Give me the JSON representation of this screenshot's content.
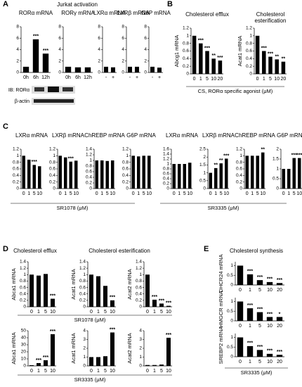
{
  "panel_labels": [
    "A",
    "B",
    "C",
    "D",
    "E"
  ],
  "headings": [
    "Jurkat activation",
    "Cholesterol efflux",
    "Cholesterol esterification",
    "Cholesterol synthesis"
  ],
  "blot_labels": [
    "IB: RORα",
    "β-actin"
  ],
  "xlabels": [
    "CS, RORα specific agonist (μM)",
    "SR1078 (μM)",
    "SR3335 (μM)",
    "SR1078 (μM)",
    "SR3335 (μM)",
    "SR3335 (μM)"
  ],
  "chart_data": [
    {
      "type": "bar",
      "title": "RORα mRNA",
      "categories": [
        "0h",
        "6h",
        "12h"
      ],
      "values": [
        1,
        5.8,
        3.3
      ],
      "annotations": [
        null,
        "***",
        "***"
      ],
      "ylim": [
        0,
        8
      ],
      "yticks": [
        0,
        2,
        4,
        6,
        8
      ],
      "color": "#000000"
    },
    {
      "type": "bar",
      "title": "RORγ mRNA",
      "categories": [
        "0h",
        "6h",
        "12h"
      ],
      "values": [
        1,
        0.9,
        0.9
      ],
      "ylim": [
        0,
        8
      ],
      "yticks": [
        0,
        2,
        4,
        6,
        8
      ],
      "color": "#000000"
    },
    {
      "type": "bar",
      "title": "LXRα mRNA",
      "categories": [
        "-",
        "+"
      ],
      "values": [
        1,
        0.9
      ],
      "ylim": [
        0,
        8
      ],
      "yticks": [
        0,
        2,
        4,
        6,
        8
      ],
      "color": "#000000"
    },
    {
      "type": "bar",
      "title": "LXRβ mRNA",
      "categories": [
        "-",
        "+"
      ],
      "values": [
        1,
        1
      ],
      "ylim": [
        0,
        8
      ],
      "yticks": [
        0,
        2,
        4,
        6,
        8
      ],
      "color": "#000000"
    },
    {
      "type": "bar",
      "title": "G6P mRNA",
      "categories": [
        "-",
        "+"
      ],
      "values": [
        1,
        0.85
      ],
      "ylim": [
        0,
        8
      ],
      "yticks": [
        0,
        2,
        4,
        6,
        8
      ],
      "color": "#000000"
    },
    {
      "type": "bar",
      "title": "Cholesterol efflux",
      "ylabel": "Abcg1 mRNA",
      "categories": [
        "0",
        "1",
        "5",
        "10",
        "20"
      ],
      "values": [
        1,
        0.8,
        0.6,
        0.4,
        0.35
      ],
      "annotations": [
        null,
        "***",
        "***",
        "**",
        "***"
      ],
      "ylim": [
        0,
        1.2
      ],
      "yticks": [
        0,
        0.2,
        0.4,
        0.6,
        0.8,
        1,
        1.2
      ],
      "color": "#000000"
    },
    {
      "type": "bar",
      "title": "Cholesterol esterification",
      "ylabel": "Acat1 mRNA",
      "categories": [
        "0",
        "1",
        "5",
        "10",
        "20"
      ],
      "values": [
        1,
        0.6,
        0.45,
        0.38,
        0.32
      ],
      "annotations": [
        null,
        "***",
        "***",
        "**",
        "**"
      ],
      "ylim": [
        0,
        1.2
      ],
      "yticks": [
        0,
        0.2,
        0.4,
        0.6,
        0.8,
        1,
        1.2
      ],
      "color": "#000000"
    },
    {
      "type": "bar",
      "title": "LXRα mRNA",
      "categories": [
        "0",
        "1",
        "5",
        "10"
      ],
      "values": [
        1,
        0.88,
        0.72,
        0.68
      ],
      "annotations": [
        null,
        null,
        "***",
        null
      ],
      "ylim": [
        0,
        1.2
      ],
      "yticks": [
        0,
        0.2,
        0.4,
        0.6,
        0.8,
        1,
        1.2
      ],
      "color": "#000000"
    },
    {
      "type": "bar",
      "title": "LXRβ mRNA",
      "categories": [
        "0",
        "1",
        "5",
        "10"
      ],
      "values": [
        1,
        0.95,
        0.82,
        0.85
      ],
      "annotations": [
        null,
        null,
        "***",
        null
      ],
      "ylim": [
        0,
        1.2
      ],
      "yticks": [
        0,
        0.2,
        0.4,
        0.6,
        0.8,
        1,
        1.2
      ],
      "color": "#000000"
    },
    {
      "type": "bar",
      "title": "ChREBP mRNA",
      "categories": [
        "0",
        "1",
        "5",
        "10"
      ],
      "values": [
        1,
        1,
        0.98,
        1
      ],
      "ylim": [
        0,
        1.4
      ],
      "yticks": [
        0,
        0.2,
        0.4,
        0.6,
        0.8,
        1,
        1.2,
        1.4
      ],
      "color": "#000000"
    },
    {
      "type": "bar",
      "title": "G6P mRNA",
      "categories": [
        "0",
        "1",
        "5",
        "10"
      ],
      "values": [
        1,
        0.98,
        1,
        1
      ],
      "ylim": [
        0,
        1.2
      ],
      "yticks": [
        0,
        0.2,
        0.4,
        0.6,
        0.8,
        1,
        1.2
      ],
      "color": "#000000"
    },
    {
      "type": "bar",
      "title": "LXRα mRNA",
      "categories": [
        "0",
        "1",
        "5",
        "10"
      ],
      "values": [
        1,
        1,
        1,
        1.05
      ],
      "ylim": [
        0,
        1.6
      ],
      "yticks": [
        0,
        0.2,
        0.4,
        0.6,
        0.8,
        1,
        1.2,
        1.4,
        1.6
      ],
      "color": "#000000"
    },
    {
      "type": "bar",
      "title": "LXRβ mRNA",
      "categories": [
        "0",
        "1",
        "5",
        "10"
      ],
      "values": [
        1,
        1.3,
        1.6,
        1.9
      ],
      "annotations": [
        null,
        "**",
        "**",
        "***"
      ],
      "ylim": [
        0,
        2.5
      ],
      "yticks": [
        0,
        0.5,
        1,
        1.5,
        2,
        2.5
      ],
      "color": "#000000"
    },
    {
      "type": "bar",
      "title": "ChREBP mRNA",
      "categories": [
        "0",
        "1",
        "5",
        "10"
      ],
      "values": [
        1,
        1,
        1,
        1.1
      ],
      "annotations": [
        null,
        null,
        null,
        "**"
      ],
      "ylim": [
        0,
        1.2
      ],
      "yticks": [
        0,
        0.2,
        0.4,
        0.6,
        0.8,
        1,
        1.2
      ],
      "color": "#000000"
    },
    {
      "type": "bar",
      "title": "G6P mRNA",
      "categories": [
        "0",
        "1",
        "5",
        "10"
      ],
      "values": [
        1,
        1,
        1.55,
        1.55
      ],
      "annotations": [
        null,
        null,
        "***",
        "***"
      ],
      "ylim": [
        0,
        2
      ],
      "yticks": [
        0,
        0.5,
        1,
        1.5,
        2
      ],
      "color": "#000000"
    },
    {
      "type": "bar",
      "ylabel": "Abca1 mRNA",
      "categories": [
        "0",
        "1",
        "5",
        "10"
      ],
      "values": [
        1,
        0.97,
        1.02,
        0.25
      ],
      "annotations": [
        null,
        null,
        null,
        "***"
      ],
      "ylim": [
        0,
        1.4
      ],
      "yticks": [
        0,
        0.2,
        0.4,
        0.6,
        0.8,
        1,
        1.2,
        1.4
      ],
      "color": "#000000"
    },
    {
      "type": "bar",
      "ylabel": "Acat1 mRNA",
      "categories": [
        "0",
        "1",
        "5",
        "10"
      ],
      "values": [
        1,
        0.95,
        0.65,
        0.2
      ],
      "annotations": [
        null,
        null,
        null,
        "***"
      ],
      "ylim": [
        0,
        1.4
      ],
      "yticks": [
        0,
        0.2,
        0.4,
        0.6,
        0.8,
        1,
        1.2,
        1.4
      ],
      "color": "#000000"
    },
    {
      "type": "bar",
      "ylabel": "Acat2 mRNA",
      "categories": [
        "0",
        "1",
        "5",
        "10"
      ],
      "values": [
        1,
        0.22,
        0.1,
        0.03
      ],
      "annotations": [
        null,
        "***",
        "***",
        "***"
      ],
      "ylim": [
        0,
        1.4
      ],
      "yticks": [
        0,
        0.2,
        0.4,
        0.6,
        0.8,
        1,
        1.2,
        1.4
      ],
      "color": "#000000"
    },
    {
      "type": "bar",
      "ylabel": "Abca1 mRNA",
      "categories": [
        "0",
        "1",
        "5",
        "10"
      ],
      "values": [
        1,
        4,
        8,
        45
      ],
      "annotations": [
        null,
        "***",
        "***",
        "***"
      ],
      "ylim": [
        0,
        50
      ],
      "yticks": [
        0,
        10,
        20,
        30,
        40,
        50
      ],
      "color": "#000000"
    },
    {
      "type": "bar",
      "ylabel": "Acat1 mRNA",
      "categories": [
        "0",
        "1",
        "5",
        "10"
      ],
      "values": [
        1,
        1,
        1.1,
        3.8
      ],
      "annotations": [
        null,
        null,
        null,
        "***"
      ],
      "ylim": [
        0,
        4
      ],
      "yticks": [
        0,
        1,
        2,
        3,
        4
      ],
      "color": "#000000"
    },
    {
      "type": "bar",
      "ylabel": "Acat2 mRNA",
      "categories": [
        "0",
        "1",
        "5",
        "10"
      ],
      "values": [
        0.1,
        0.1,
        0.15,
        3.2
      ],
      "annotations": [
        null,
        null,
        null,
        "***"
      ],
      "ylim": [
        0,
        4
      ],
      "yticks": [
        0,
        1,
        2,
        3,
        4
      ],
      "color": "#000000"
    },
    {
      "type": "bar",
      "ylabel": "DHCR24 mRNA",
      "categories": [
        "0",
        "1",
        "5",
        "10",
        "20"
      ],
      "values": [
        1,
        0.55,
        0.25,
        0.15,
        0.1
      ],
      "annotations": [
        null,
        "***",
        "***",
        "***",
        "***"
      ],
      "ylim": [
        0,
        1.2
      ],
      "yticks": [
        0,
        0.5,
        1
      ],
      "color": "#000000"
    },
    {
      "type": "bar",
      "ylabel": "HMGCR mRNA",
      "categories": [
        "0",
        "1",
        "5",
        "10",
        "20"
      ],
      "values": [
        1,
        0.65,
        0.45,
        0.2,
        0.2
      ],
      "annotations": [
        null,
        "***",
        "***",
        "***",
        "*"
      ],
      "ylim": [
        0,
        1.2
      ],
      "yticks": [
        0,
        0.5,
        1
      ],
      "color": "#000000"
    },
    {
      "type": "bar",
      "ylabel": "SREBP2 mRNA",
      "categories": [
        "0",
        "1",
        "5",
        "10",
        "20"
      ],
      "values": [
        1,
        0.55,
        0.35,
        0.15,
        0.1
      ],
      "annotations": [
        null,
        "***",
        "***",
        "***",
        "***"
      ],
      "ylim": [
        0,
        1.2
      ],
      "yticks": [
        0,
        0.5,
        1
      ],
      "color": "#000000"
    }
  ]
}
